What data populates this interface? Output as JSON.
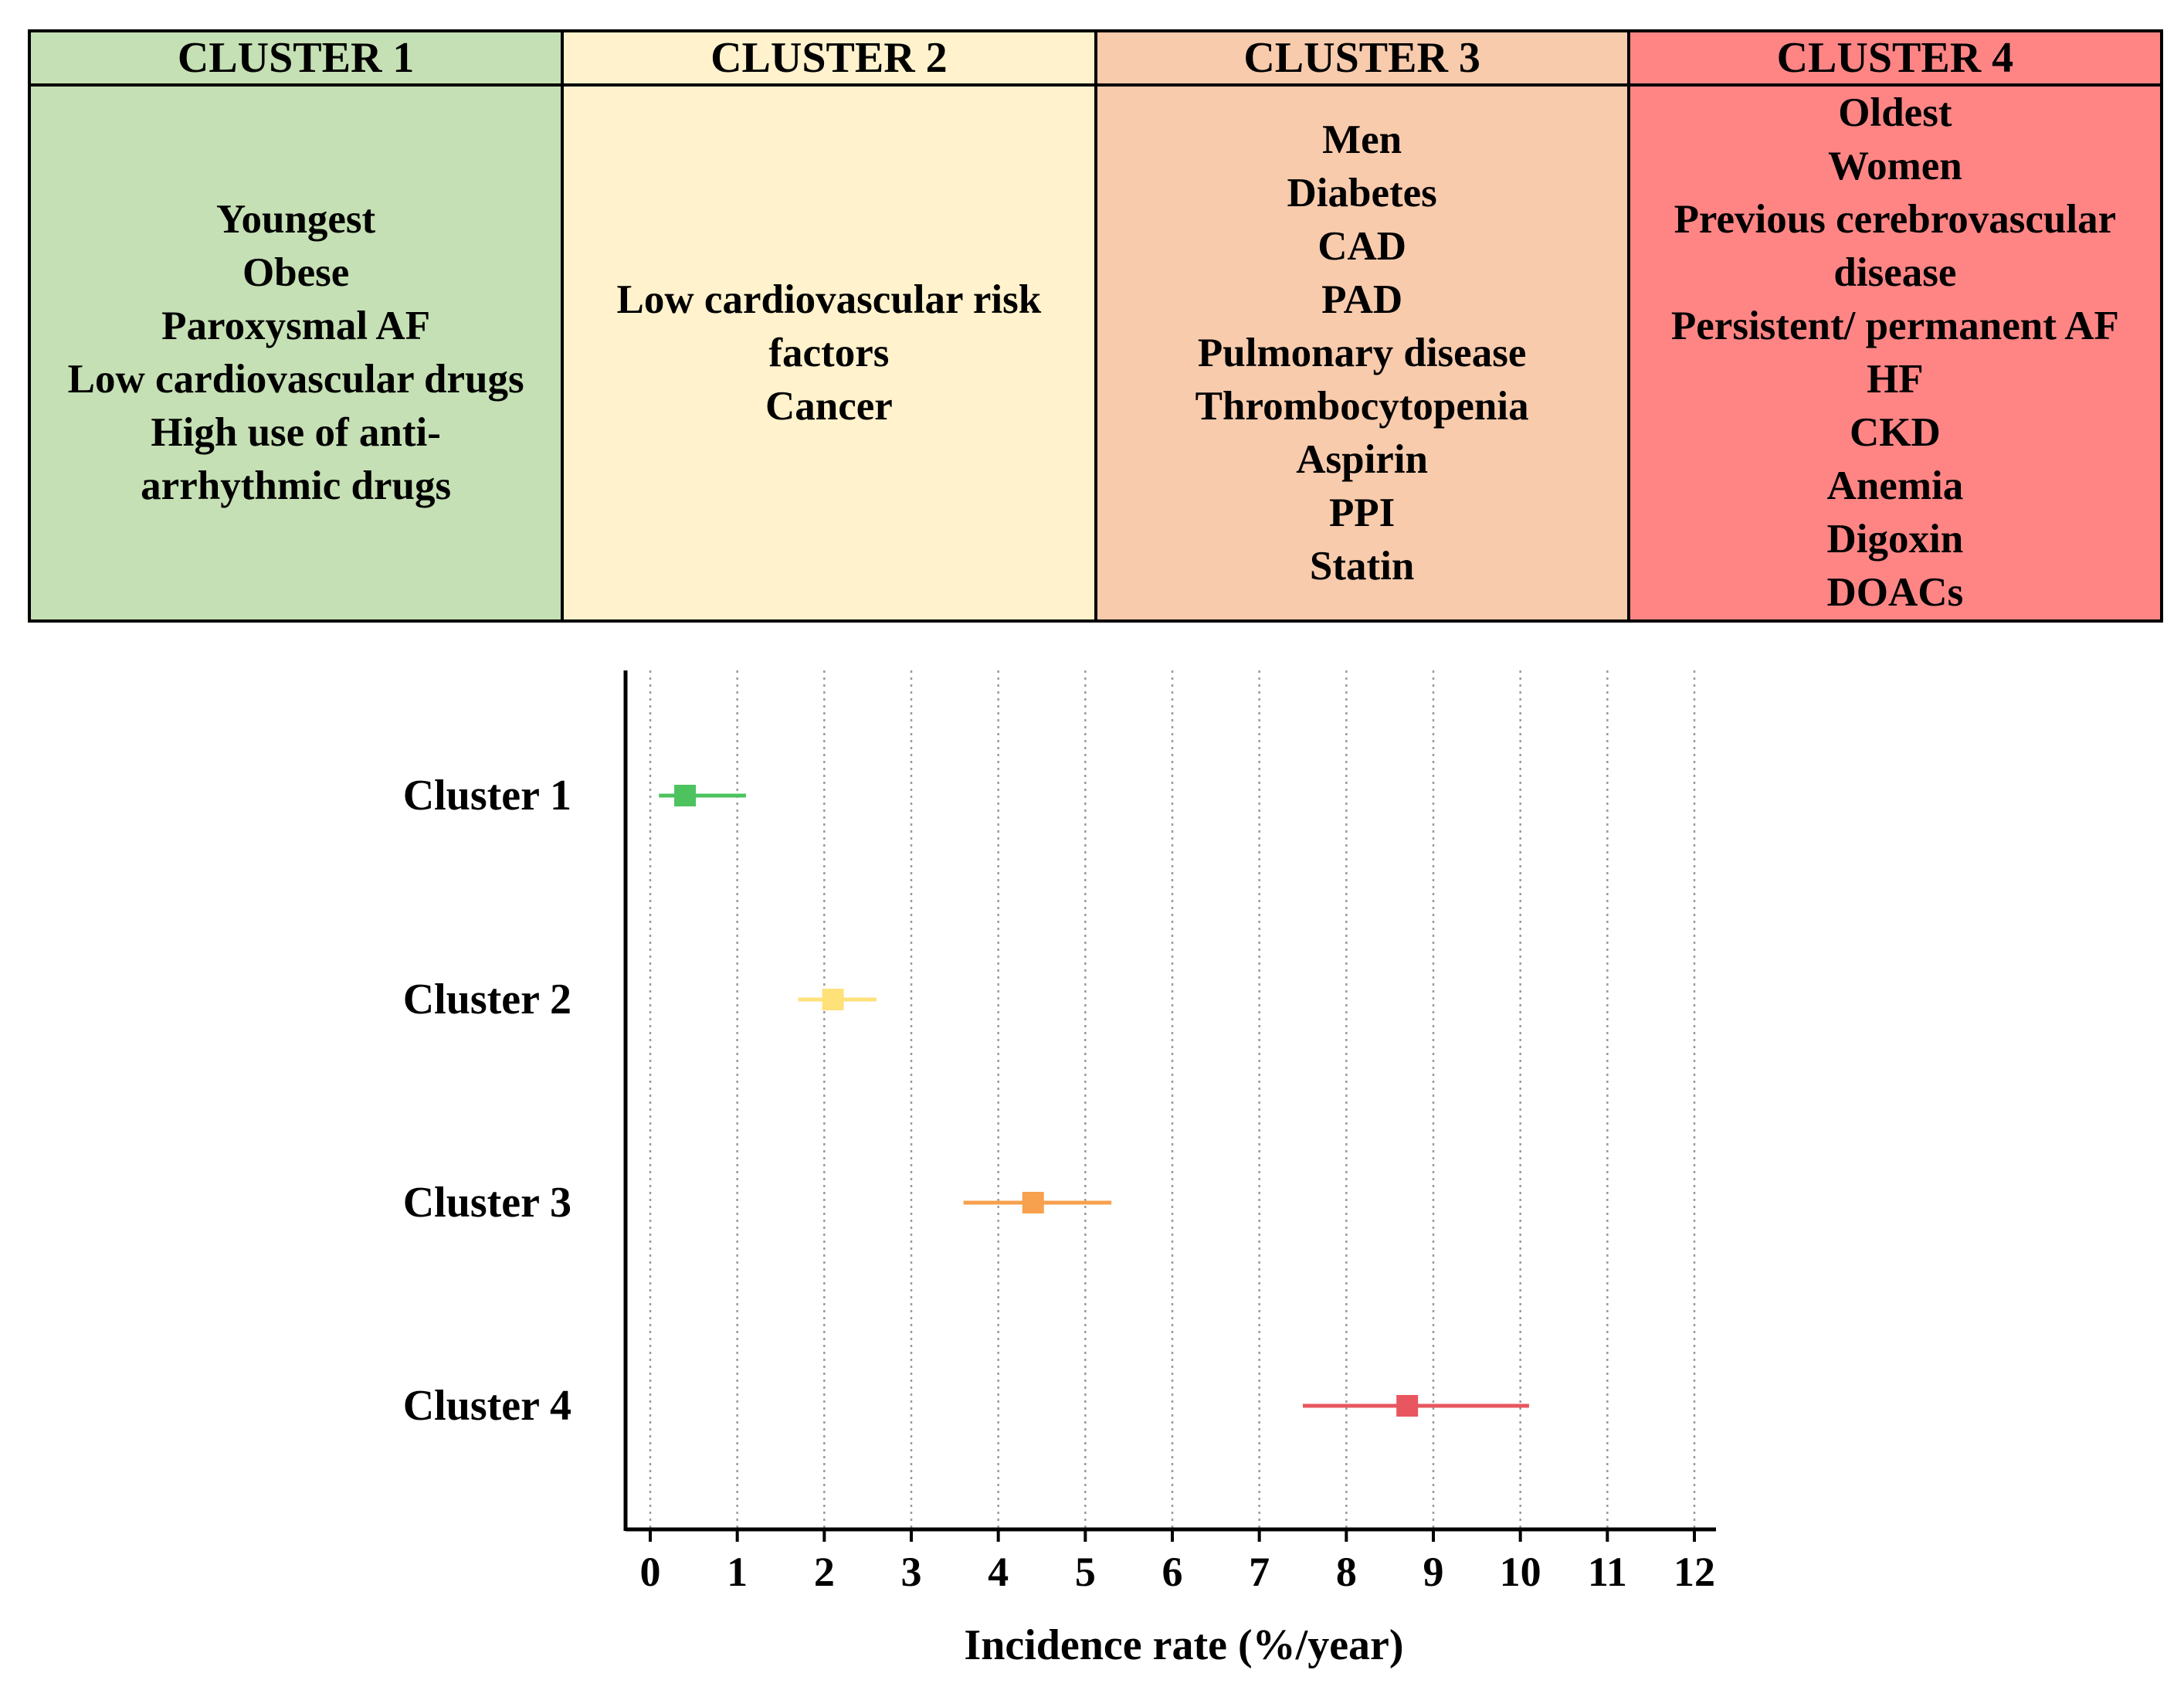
{
  "table": {
    "headers": [
      "CLUSTER 1",
      "CLUSTER 2",
      "CLUSTER 3",
      "CLUSTER 4"
    ],
    "colors": [
      "#c5e0b4",
      "#fff2cc",
      "#f8cbad",
      "#ff8585"
    ],
    "features": [
      [
        "Youngest",
        "Obese",
        "Paroxysmal AF",
        "Low cardiovascular drugs",
        "High use of anti-",
        "arrhythmic drugs"
      ],
      [
        "Low cardiovascular risk",
        "factors",
        "Cancer"
      ],
      [
        "Men",
        "Diabetes",
        "CAD",
        "PAD",
        "Pulmonary disease",
        "Thrombocytopenia",
        "Aspirin",
        "PPI",
        "Statin"
      ],
      [
        "Oldest",
        "Women",
        "Previous cerebrovascular",
        "disease",
        "Persistent/ permanent AF",
        "HF",
        "CKD",
        "Anemia",
        "Digoxin",
        "DOACs"
      ]
    ]
  },
  "chart_data": {
    "type": "forest",
    "title": "",
    "xlabel": "Incidence rate (%/year)",
    "ylabel": "",
    "xlim": [
      0,
      12
    ],
    "xticks": [
      "0",
      "1",
      "2",
      "3",
      "4",
      "5",
      "6",
      "7",
      "8",
      "9",
      "10",
      "11",
      "12"
    ],
    "grid": "vertical dotted",
    "series": [
      {
        "name": "Cluster 1",
        "value": 0.4,
        "lower": 0.1,
        "upper": 1.1,
        "color": "#4cc35e"
      },
      {
        "name": "Cluster 2",
        "value": 2.1,
        "lower": 1.7,
        "upper": 2.6,
        "color": "#ffe17a"
      },
      {
        "name": "Cluster 3",
        "value": 4.4,
        "lower": 3.6,
        "upper": 5.3,
        "color": "#f7a04d"
      },
      {
        "name": "Cluster 4",
        "value": 8.7,
        "lower": 7.5,
        "upper": 10.1,
        "color": "#e8565f"
      }
    ]
  }
}
